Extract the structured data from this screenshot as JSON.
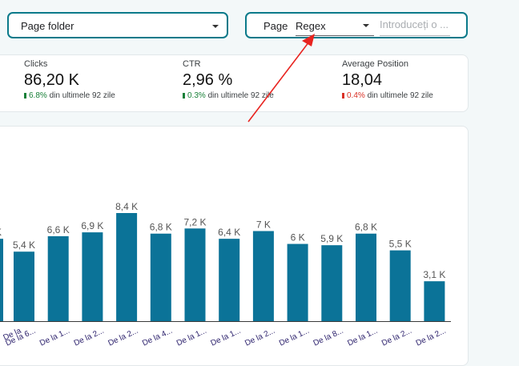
{
  "filters": {
    "page_folder": {
      "label": "Page folder"
    },
    "page_regex": {
      "label": "Page",
      "mode": "Regex",
      "value": "",
      "placeholder": "Introduceți o ..."
    }
  },
  "scorecards": [
    {
      "label": "Clicks",
      "value": "86,20 K",
      "delta": "6.8%",
      "direction": "up",
      "period": "din ultimele 92 zile"
    },
    {
      "label": "CTR",
      "value": "2,96 %",
      "delta": "0.3%",
      "direction": "up",
      "period": "din ultimele 92 zile"
    },
    {
      "label": "Average Position",
      "value": "18,04",
      "delta": "0.4%",
      "direction": "down",
      "period": "din ultimele 92 zile"
    }
  ],
  "colors": {
    "accent": "#0b7a8a",
    "bar": "#0b7398",
    "up": "#188038",
    "down": "#d93025",
    "annotation": "#e8231f"
  },
  "chart_data": {
    "type": "bar",
    "series": "Clicks",
    "categories": [
      "De la 6...",
      "De la 1...",
      "De la 2...",
      "De la 2...",
      "De la 4...",
      "De la 1...",
      "De la 1...",
      "De la 2...",
      "De la 1...",
      "De la 8...",
      "De la 1...",
      "De la 2...",
      "De la 2..."
    ],
    "values": [
      5400,
      6600,
      6900,
      8400,
      6800,
      7200,
      6400,
      7000,
      6000,
      5900,
      6800,
      5500,
      3100
    ],
    "labels": [
      "5,4 K",
      "6,6 K",
      "6,9 K",
      "8,4 K",
      "6,8 K",
      "7,2 K",
      "6,4 K",
      "7 K",
      "6 K",
      "5,9 K",
      "6,8 K",
      "5,5 K",
      "3,1 K"
    ],
    "partial_first_label": "K",
    "ylim": [
      0,
      10000
    ]
  }
}
